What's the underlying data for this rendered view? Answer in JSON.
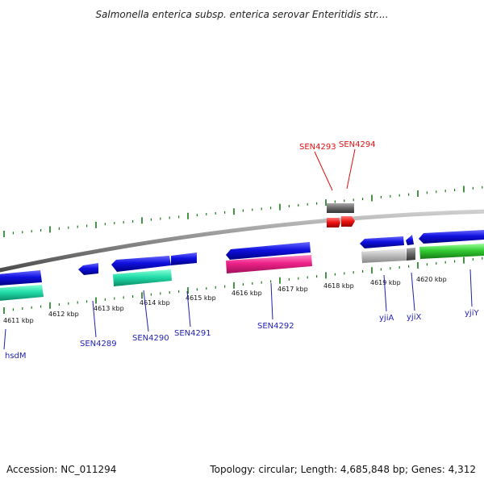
{
  "title": "Salmonella enterica subsp. enterica serovar Enteritidis str....",
  "footer": {
    "accession": "Accession: NC_011294",
    "summary": "Topology: circular; Length: 4,685,848 bp; Genes: 4,312"
  },
  "ruler_labels": [
    "4611 kbp",
    "4612 kbp",
    "4613 kbp",
    "4614 kbp",
    "4615 kbp",
    "4616 kbp",
    "4617 kbp",
    "4618 kbp",
    "4619 kbp",
    "4620 kbp"
  ],
  "genes_below": [
    "hsdM",
    "SEN4289",
    "SEN4290",
    "SEN4291",
    "SEN4292",
    "yjiA",
    "yjiX",
    "yjiY"
  ],
  "genes_above": [
    "SEN4293",
    "SEN4294"
  ],
  "colors": {
    "forward_gene": "#1010e0",
    "cds_green": "#22ddaa",
    "cds_pink": "#ee2288",
    "cds_grey": "#bbbbbb",
    "cds_lime": "#33cc33",
    "rna_red": "#ee1111",
    "dark_grey": "#666666",
    "tick_green": "#1a7a1a",
    "backbone": "#8a8a8a"
  }
}
